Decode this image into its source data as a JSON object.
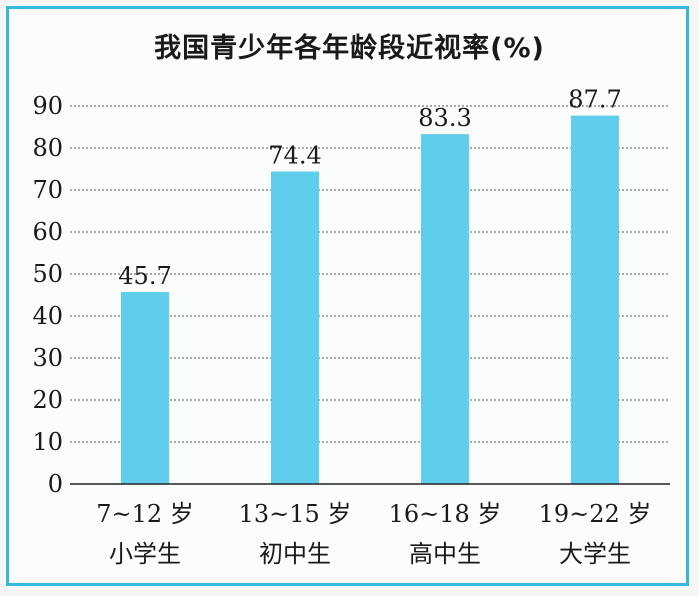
{
  "chart_data": {
    "type": "bar",
    "title": "我国青少年各年龄段近视率(%)",
    "categories": [
      {
        "line1": "7~12 岁",
        "line2": "小学生"
      },
      {
        "line1": "13~15 岁",
        "line2": "初中生"
      },
      {
        "line1": "16~18 岁",
        "line2": "高中生"
      },
      {
        "line1": "19~22 岁",
        "line2": "大学生"
      }
    ],
    "values": [
      45.7,
      74.4,
      83.3,
      87.7
    ],
    "data_labels": [
      "45.7",
      "74.4",
      "83.3",
      "87.7"
    ],
    "yticks": [
      "0",
      "10",
      "20",
      "30",
      "40",
      "50",
      "60",
      "70",
      "80",
      "90"
    ],
    "ylim": [
      0,
      90
    ],
    "grid": "horizontal dotted",
    "bar_color": "#5fcdec",
    "frame_color": "#38b8d8"
  }
}
